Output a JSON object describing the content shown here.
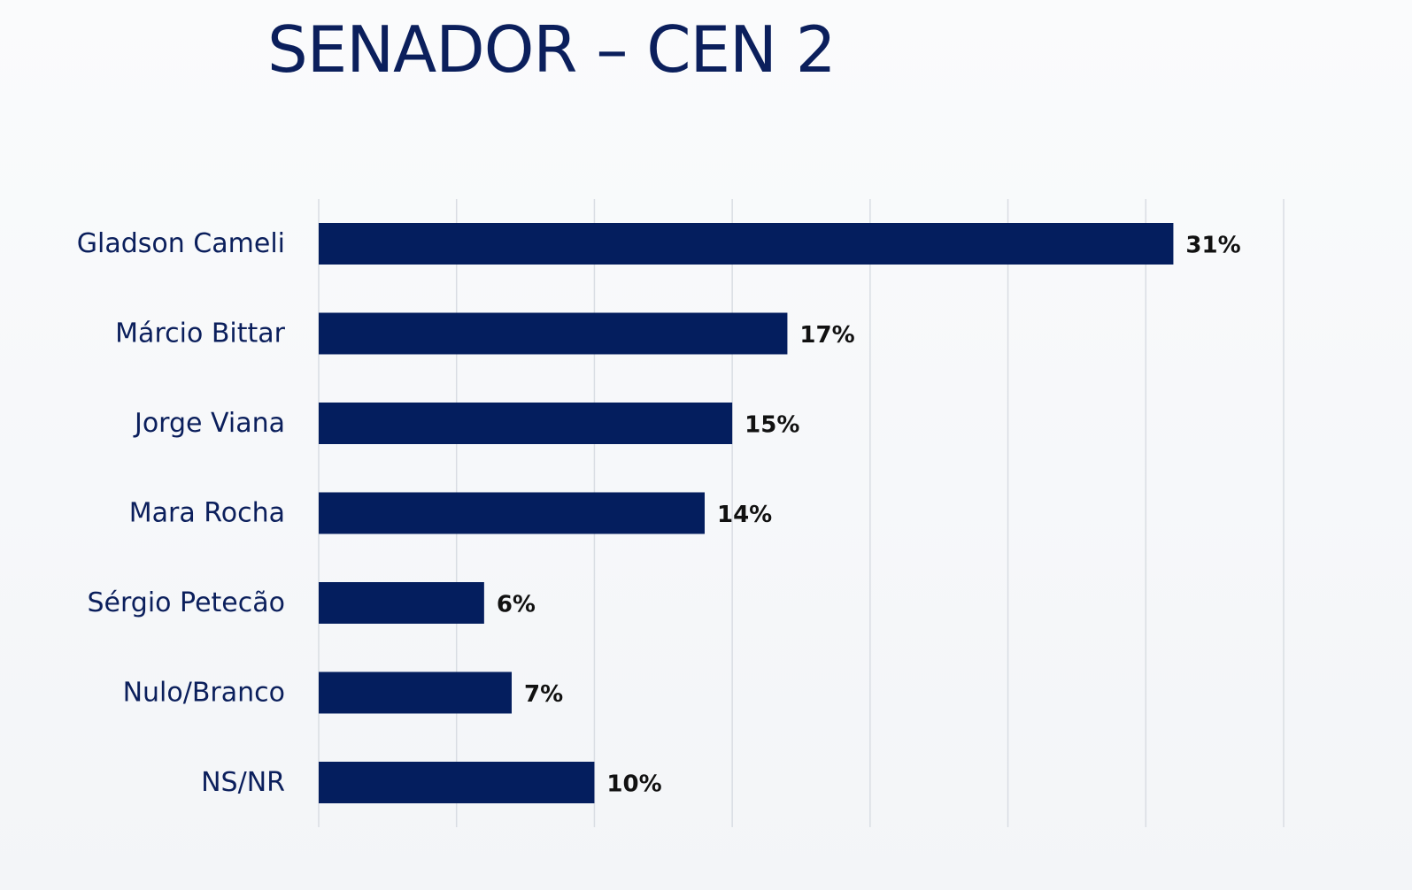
{
  "chart_data": {
    "type": "bar",
    "orientation": "horizontal",
    "title": "SENADOR – CEN 2",
    "categories": [
      "Gladson Cameli",
      "Márcio Bittar",
      "Jorge Viana",
      "Mara Rocha",
      "Sérgio Petecão",
      "Nulo/Branco",
      "NS/NR"
    ],
    "values": [
      31,
      17,
      15,
      14,
      6,
      7,
      10
    ],
    "value_labels": [
      "31%",
      "17%",
      "15%",
      "14%",
      "6%",
      "7%",
      "10%"
    ],
    "xlabel": "",
    "ylabel": "",
    "xlim": [
      0,
      35
    ],
    "grid": true,
    "legend": "none",
    "colors": {
      "bar": "#041e5e",
      "title": "#0b1f5c",
      "category_text": "#0b1f5c",
      "value_text": "#111111",
      "grid": "#d9dde3"
    }
  }
}
